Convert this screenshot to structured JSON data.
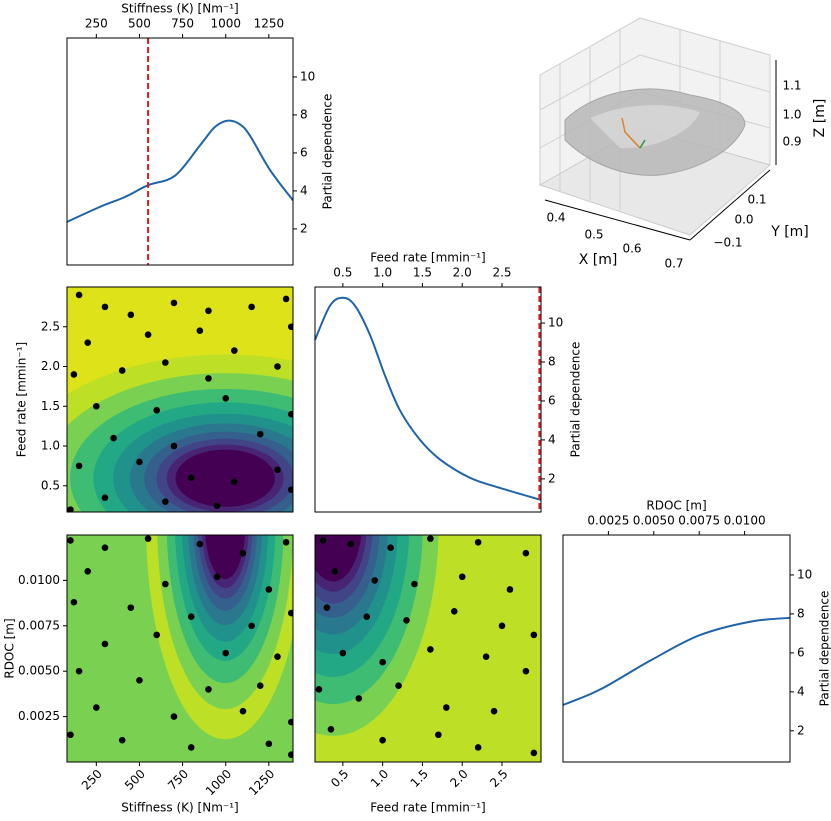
{
  "chart_data": [
    {
      "type": "line",
      "xlabel": "Stiffness (K) [Nm⁻¹]",
      "ylabel": "Partial dependence",
      "x": [
        80,
        271,
        416,
        550,
        706,
        851,
        938,
        1014,
        1083,
        1141,
        1257,
        1390
      ],
      "values": [
        2.37,
        3.16,
        3.68,
        4.3,
        4.8,
        6.4,
        7.37,
        7.7,
        7.5,
        6.9,
        5.1,
        3.5
      ],
      "color": "#1f63a8",
      "vline": 550,
      "vline_color": "#e31a1c",
      "xlim": [
        80,
        1390
      ],
      "xticks": [
        250,
        500,
        750,
        1000,
        1250
      ],
      "ylim": [
        0.1,
        12.05
      ],
      "yticks": [
        2,
        4,
        6,
        8,
        10
      ]
    },
    {
      "type": "surface3d",
      "xlabel": "X [m]",
      "ylabel": "Y [m]",
      "zlabel": "Z [m]",
      "xticks": [
        0.4,
        0.5,
        0.6,
        0.7
      ],
      "yticks": [
        {
          "value": -0.1,
          "label": "−0.1"
        },
        {
          "value": 0,
          "label": "0.0"
        },
        0.1
      ],
      "zticks": [
        0.9,
        {
          "value": 1,
          "label": "1.0"
        },
        1.1
      ]
    },
    {
      "type": "contour",
      "ylabel": "Feed rate [mmin⁻¹]",
      "x": [
        150,
        300,
        450,
        700,
        900,
        1150,
        1350,
        200,
        550,
        850,
        1050,
        1300,
        120,
        400,
        650,
        900,
        250,
        600,
        1000,
        1380,
        350,
        700,
        1200,
        150,
        500,
        800,
        1050,
        1300,
        300,
        650,
        950,
        1380,
        100,
        1380
      ],
      "y": [
        2.9,
        2.75,
        2.65,
        2.8,
        2.7,
        2.75,
        2.85,
        2.3,
        2.4,
        2.45,
        2.2,
        2.0,
        1.9,
        1.95,
        2.05,
        1.85,
        1.5,
        1.45,
        1.6,
        1.4,
        1.1,
        1.0,
        1.15,
        0.75,
        0.8,
        0.6,
        0.55,
        0.7,
        0.35,
        0.3,
        0.25,
        0.45,
        0.2,
        2.5
      ],
      "xlim": [
        80,
        1390
      ],
      "ylim": [
        0.17,
        3.0
      ],
      "yticks": [
        0.5,
        {
          "value": 1,
          "label": "1.0"
        },
        1.5,
        {
          "value": 2,
          "label": "2.0"
        },
        2.5
      ]
    },
    {
      "type": "line",
      "xlabel": "Feed rate [mmin⁻¹]",
      "ylabel": "Partial dependence",
      "x": [
        0.15,
        0.34,
        0.5,
        0.65,
        0.84,
        1.03,
        1.22,
        1.47,
        1.72,
        2.1,
        2.47,
        2.99
      ],
      "values": [
        9.13,
        10.9,
        11.3,
        10.9,
        9.4,
        7.3,
        5.5,
        4.0,
        3.0,
        2.05,
        1.54,
        0.92
      ],
      "color": "#1f63a8",
      "vline": 2.97,
      "vline_color": "#e31a1c",
      "xlim": [
        0.15,
        2.99
      ],
      "xticks": [
        0.5,
        {
          "value": 1,
          "label": "1.0"
        },
        1.5,
        {
          "value": 2,
          "label": "2.0"
        },
        2.5
      ],
      "ylim": [
        0.3,
        11.85
      ],
      "yticks": [
        2,
        4,
        6,
        8,
        10
      ]
    },
    {
      "type": "contour",
      "xlabel": "Stiffness (K) [Nm⁻¹]",
      "ylabel": "RDOC [m]",
      "x": [
        100,
        300,
        550,
        850,
        1100,
        1350,
        200,
        650,
        950,
        1250,
        120,
        450,
        800,
        1150,
        1380,
        300,
        600,
        1000,
        1300,
        150,
        500,
        900,
        1200,
        250,
        700,
        1100,
        1380,
        100,
        400,
        800,
        1250,
        1380
      ],
      "y": [
        0.0122,
        0.0118,
        0.0123,
        0.012,
        0.0115,
        0.0121,
        0.0105,
        0.0098,
        0.0102,
        0.0095,
        0.0088,
        0.0085,
        0.008,
        0.0075,
        0.0082,
        0.0065,
        0.007,
        0.006,
        0.0058,
        0.005,
        0.0045,
        0.004,
        0.0042,
        0.003,
        0.0025,
        0.0028,
        0.0022,
        0.0015,
        0.0012,
        0.0008,
        0.001,
        0.0004
      ],
      "xlim": [
        80,
        1390
      ],
      "xticks": [
        250,
        500,
        750,
        1000,
        1250
      ],
      "ylim": [
        0,
        0.0125
      ],
      "yticks": [
        0.0025,
        {
          "value": 0.005,
          "label": "0.0050"
        },
        0.0075,
        {
          "value": 0.01,
          "label": "0.0100"
        }
      ]
    },
    {
      "type": "contour",
      "xlabel": "Feed rate [mmin⁻¹]",
      "x": [
        0.25,
        0.6,
        1.1,
        1.6,
        2.2,
        2.8,
        0.4,
        0.9,
        1.4,
        2.0,
        2.6,
        0.3,
        0.8,
        1.3,
        1.9,
        2.5,
        2.9,
        0.5,
        1.0,
        1.6,
        2.3,
        2.8,
        0.2,
        0.7,
        1.2,
        1.8,
        2.4,
        0.35,
        1.0,
        1.7,
        2.2,
        2.9
      ],
      "y": [
        0.0122,
        0.012,
        0.0118,
        0.0123,
        0.0121,
        0.0115,
        0.0105,
        0.01,
        0.0098,
        0.0102,
        0.0095,
        0.0085,
        0.008,
        0.0078,
        0.0083,
        0.0075,
        0.007,
        0.006,
        0.0055,
        0.0062,
        0.0058,
        0.005,
        0.004,
        0.0035,
        0.0042,
        0.003,
        0.0028,
        0.0018,
        0.0012,
        0.0015,
        0.0008,
        0.0005
      ],
      "xlim": [
        0.15,
        2.99
      ],
      "xticks": [
        0.5,
        {
          "value": 1,
          "label": "1.0"
        },
        1.5,
        {
          "value": 2,
          "label": "2.0"
        },
        2.5
      ],
      "ylim": [
        0,
        0.0125
      ]
    },
    {
      "type": "line",
      "xlabel": "RDOC [m]",
      "ylabel": "Partial dependence",
      "x": [
        0,
        0.002,
        0.0048,
        0.0075,
        0.0103,
        0.0125
      ],
      "values": [
        3.33,
        4.1,
        5.6,
        6.9,
        7.6,
        7.8
      ],
      "color": "#1f63a8",
      "xlim": [
        0,
        0.0125
      ],
      "xticks": [
        0.0025,
        {
          "value": 0.005,
          "label": "0.0050"
        },
        0.0075,
        {
          "value": 0.01,
          "label": "0.0100"
        }
      ],
      "ylim": [
        0.4,
        12.05
      ],
      "yticks": [
        2,
        4,
        6,
        8,
        10
      ]
    }
  ]
}
